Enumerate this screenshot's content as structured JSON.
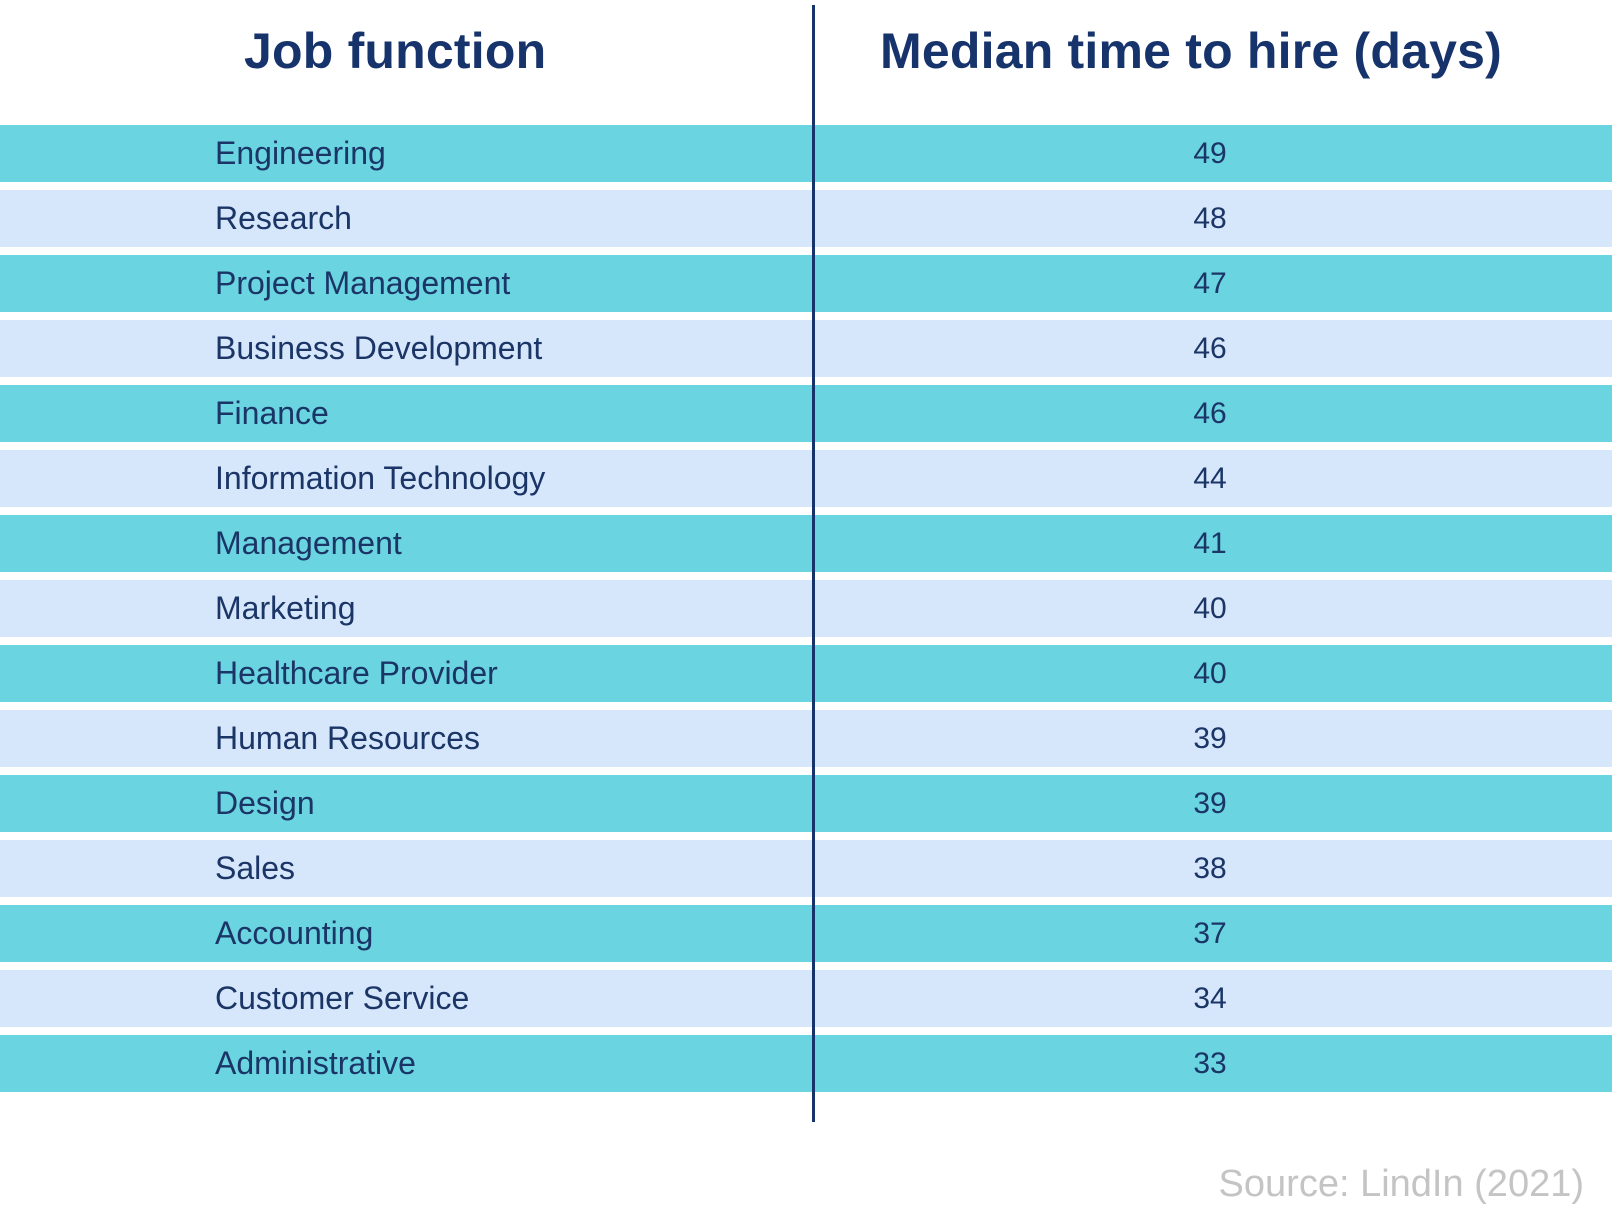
{
  "chart_data": {
    "type": "table",
    "columns": [
      "Job function",
      "Median time to hire (days)"
    ],
    "rows": [
      {
        "job": "Engineering",
        "days": 49
      },
      {
        "job": "Research",
        "days": 48
      },
      {
        "job": "Project Management",
        "days": 47
      },
      {
        "job": "Business Development",
        "days": 46
      },
      {
        "job": "Finance",
        "days": 46
      },
      {
        "job": "Information Technology",
        "days": 44
      },
      {
        "job": "Management",
        "days": 41
      },
      {
        "job": "Marketing",
        "days": 40
      },
      {
        "job": "Healthcare Provider",
        "days": 40
      },
      {
        "job": "Human Resources",
        "days": 39
      },
      {
        "job": "Design",
        "days": 39
      },
      {
        "job": "Sales",
        "days": 38
      },
      {
        "job": "Accounting",
        "days": 37
      },
      {
        "job": "Customer Service",
        "days": 34
      },
      {
        "job": "Administrative",
        "days": 33
      }
    ],
    "source": "Source: LindIn (2021)"
  },
  "colors": {
    "row_dark": "#6ad4e0",
    "row_light": "#d6e6fb",
    "text": "#1a3566",
    "divider": "#16336b",
    "source_text": "#c4c4c4"
  }
}
